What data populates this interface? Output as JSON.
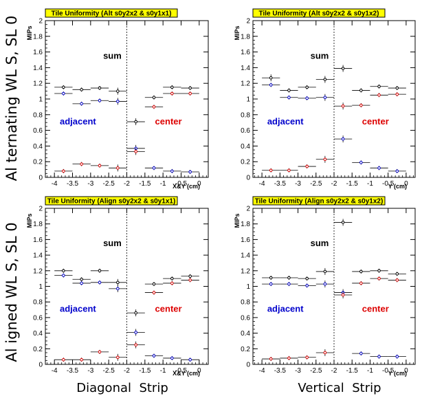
{
  "rows": [
    {
      "label": "Al ternating WL S, SL 0"
    },
    {
      "label": "Al igned WL S, SL 0"
    }
  ],
  "cols": [
    {
      "label": "Diagonal  Strip"
    },
    {
      "label": "Vertical  Strip"
    }
  ],
  "annotations": {
    "sum": "sum",
    "adjacent": "adjacent",
    "center": "center"
  },
  "colors": {
    "sum": "#000000",
    "adjacent": "#0000cc",
    "center": "#dd0000",
    "title_bg": "#ffff00"
  },
  "chart_data": [
    {
      "type": "scatter",
      "title": "Tile Uniformity (Alt s0y2x2 & s0y1x1)",
      "ylabel": "MIPs",
      "xlabel": "X&Y (cm)",
      "xlim": [
        -4.25,
        0.25
      ],
      "ylim": [
        0,
        2
      ],
      "xticks": [
        "-4",
        "-3.5",
        "-3",
        "-2.5",
        "-2",
        "-1.5",
        "-1",
        "-0.5",
        "0"
      ],
      "yticks": [
        "0",
        "0.2",
        "0.4",
        "0.6",
        "0.8",
        "1",
        "1.2",
        "1.4",
        "1.6",
        "1.8",
        "2"
      ],
      "series": [
        {
          "name": "sum",
          "color": "#000000",
          "points": [
            [
              -3.75,
              1.15
            ],
            [
              -3.25,
              1.12
            ],
            [
              -2.75,
              1.14
            ],
            [
              -2.25,
              1.1
            ],
            [
              -1.75,
              0.71
            ],
            [
              -1.25,
              1.02
            ],
            [
              -0.75,
              1.15
            ],
            [
              -0.25,
              1.14
            ]
          ]
        },
        {
          "name": "adjacent",
          "color": "#0000cc",
          "points": [
            [
              -3.75,
              1.07
            ],
            [
              -3.25,
              0.94
            ],
            [
              -2.75,
              0.98
            ],
            [
              -2.25,
              0.97
            ],
            [
              -1.75,
              0.37
            ],
            [
              -1.25,
              0.12
            ],
            [
              -0.75,
              0.08
            ],
            [
              -0.25,
              0.07
            ]
          ]
        },
        {
          "name": "center",
          "color": "#dd0000",
          "points": [
            [
              -3.75,
              0.08
            ],
            [
              -3.25,
              0.17
            ],
            [
              -2.75,
              0.15
            ],
            [
              -2.25,
              0.12
            ],
            [
              -1.75,
              0.33
            ],
            [
              -1.25,
              0.9
            ],
            [
              -0.75,
              1.07
            ],
            [
              -0.25,
              1.07
            ]
          ]
        }
      ]
    },
    {
      "type": "scatter",
      "title": "Tile Uniformity (Alt s0y2x2 & s0y1x2)",
      "ylabel": "MIPs",
      "xlabel": "Y (cm)",
      "xlim": [
        -4.25,
        0.25
      ],
      "ylim": [
        0,
        2
      ],
      "xticks": [
        "-4",
        "-3.5",
        "-3",
        "-2.5",
        "-2",
        "-1.5",
        "-1",
        "-0.5",
        "0"
      ],
      "yticks": [
        "0",
        "0.2",
        "0.4",
        "0.6",
        "0.8",
        "1",
        "1.2",
        "1.4",
        "1.6",
        "1.8",
        "2"
      ],
      "series": [
        {
          "name": "sum",
          "color": "#000000",
          "points": [
            [
              -3.75,
              1.27
            ],
            [
              -3.25,
              1.11
            ],
            [
              -2.75,
              1.15
            ],
            [
              -2.25,
              1.25
            ],
            [
              -1.75,
              1.39
            ],
            [
              -1.25,
              1.11
            ],
            [
              -0.75,
              1.16
            ],
            [
              -0.25,
              1.14
            ]
          ]
        },
        {
          "name": "adjacent",
          "color": "#0000cc",
          "points": [
            [
              -3.75,
              1.18
            ],
            [
              -3.25,
              1.02
            ],
            [
              -2.75,
              1.01
            ],
            [
              -2.25,
              1.02
            ],
            [
              -1.75,
              0.49
            ],
            [
              -1.25,
              0.19
            ],
            [
              -0.75,
              0.12
            ],
            [
              -0.25,
              0.08
            ]
          ]
        },
        {
          "name": "center",
          "color": "#dd0000",
          "points": [
            [
              -3.75,
              0.09
            ],
            [
              -3.25,
              0.09
            ],
            [
              -2.75,
              0.14
            ],
            [
              -2.25,
              0.23
            ],
            [
              -1.75,
              0.91
            ],
            [
              -1.25,
              0.92
            ],
            [
              -0.75,
              1.05
            ],
            [
              -0.25,
              1.06
            ]
          ]
        }
      ]
    },
    {
      "type": "scatter",
      "title": "Tile Uniformity (Align s0y2x2 & s0y1x1)",
      "ylabel": "MIPs",
      "xlabel": "X&Y (cm)",
      "xlim": [
        -4.25,
        0.25
      ],
      "ylim": [
        0,
        2
      ],
      "xticks": [
        "-4",
        "-3.5",
        "-3",
        "-2.5",
        "-2",
        "-1.5",
        "-1",
        "-0.5",
        "0"
      ],
      "yticks": [
        "0",
        "0.2",
        "0.4",
        "0.6",
        "0.8",
        "1",
        "1.2",
        "1.4",
        "1.6",
        "1.8",
        "2"
      ],
      "series": [
        {
          "name": "sum",
          "color": "#000000",
          "points": [
            [
              -3.75,
              1.2
            ],
            [
              -3.25,
              1.09
            ],
            [
              -2.75,
              1.2
            ],
            [
              -2.25,
              1.05
            ],
            [
              -1.75,
              0.66
            ],
            [
              -1.25,
              1.03
            ],
            [
              -0.75,
              1.1
            ],
            [
              -0.25,
              1.13
            ]
          ]
        },
        {
          "name": "adjacent",
          "color": "#0000cc",
          "points": [
            [
              -3.75,
              1.14
            ],
            [
              -3.25,
              1.04
            ],
            [
              -2.75,
              1.05
            ],
            [
              -2.25,
              0.97
            ],
            [
              -1.75,
              0.41
            ],
            [
              -1.25,
              0.11
            ],
            [
              -0.75,
              0.08
            ],
            [
              -0.25,
              0.06
            ]
          ]
        },
        {
          "name": "center",
          "color": "#dd0000",
          "points": [
            [
              -3.75,
              0.06
            ],
            [
              -3.25,
              0.06
            ],
            [
              -2.75,
              0.16
            ],
            [
              -2.25,
              0.09
            ],
            [
              -1.75,
              0.25
            ],
            [
              -1.25,
              0.92
            ],
            [
              -0.75,
              1.04
            ],
            [
              -0.25,
              1.08
            ]
          ]
        }
      ]
    },
    {
      "type": "scatter",
      "title": "Tile Uniformity (Align s0y2x2 & s0y1x2)",
      "ylabel": "MIPs",
      "xlabel": "Y (cm)",
      "xlim": [
        -4.25,
        0.25
      ],
      "ylim": [
        0,
        2
      ],
      "xticks": [
        "-4",
        "-3.5",
        "-3",
        "-2.5",
        "-2",
        "-1.5",
        "-1",
        "-0.5",
        "0"
      ],
      "yticks": [
        "0",
        "0.2",
        "0.4",
        "0.6",
        "0.8",
        "1",
        "1.2",
        "1.4",
        "1.6",
        "1.8",
        "2"
      ],
      "series": [
        {
          "name": "sum",
          "color": "#000000",
          "points": [
            [
              -3.75,
              1.11
            ],
            [
              -3.25,
              1.11
            ],
            [
              -2.75,
              1.1
            ],
            [
              -2.25,
              1.19
            ],
            [
              -1.75,
              1.82
            ],
            [
              -1.25,
              1.19
            ],
            [
              -0.75,
              1.2
            ],
            [
              -0.25,
              1.16
            ]
          ]
        },
        {
          "name": "adjacent",
          "color": "#0000cc",
          "points": [
            [
              -3.75,
              1.03
            ],
            [
              -3.25,
              1.03
            ],
            [
              -2.75,
              1.01
            ],
            [
              -2.25,
              1.03
            ],
            [
              -1.75,
              0.92
            ],
            [
              -1.25,
              0.14
            ],
            [
              -0.75,
              0.1
            ],
            [
              -0.25,
              0.1
            ]
          ]
        },
        {
          "name": "center",
          "color": "#dd0000",
          "points": [
            [
              -3.75,
              0.07
            ],
            [
              -3.25,
              0.08
            ],
            [
              -2.75,
              0.09
            ],
            [
              -2.25,
              0.15
            ],
            [
              -1.75,
              0.89
            ],
            [
              -1.25,
              1.04
            ],
            [
              -0.75,
              1.1
            ],
            [
              -0.25,
              1.08
            ]
          ]
        }
      ]
    }
  ]
}
